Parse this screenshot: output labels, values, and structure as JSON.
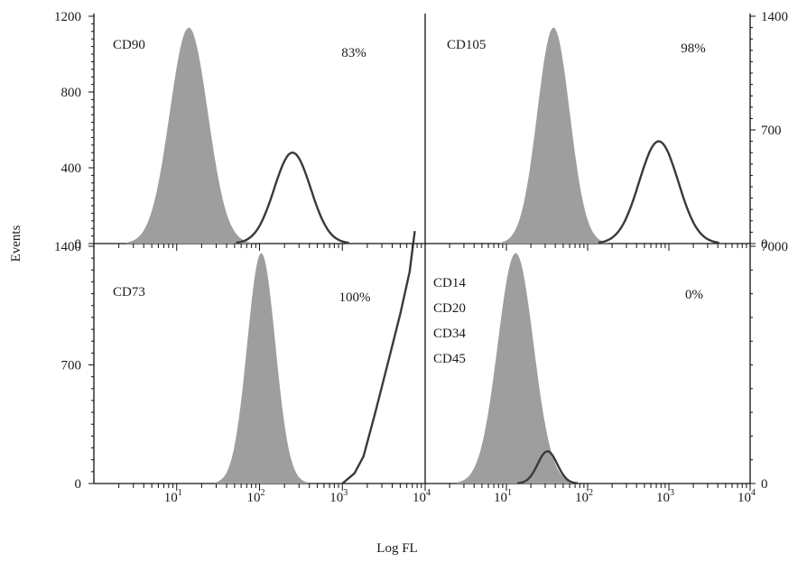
{
  "chart_data": {
    "type": "area",
    "xlabel": "Log FL",
    "ylabel": "Events",
    "x_scale": "log",
    "xlim": [
      1,
      10000
    ],
    "x_ticks": [
      {
        "base": "10",
        "exp": "1"
      },
      {
        "base": "10",
        "exp": "2"
      },
      {
        "base": "10",
        "exp": "3"
      },
      {
        "base": "10",
        "exp": "4"
      }
    ],
    "panels": [
      {
        "id": "cd90",
        "labels": [
          "CD90"
        ],
        "percent": "83%",
        "ylim": [
          0,
          1200
        ],
        "y_ticks": [
          0,
          400,
          800,
          1200
        ],
        "y_tick_labels": [
          "0",
          "400",
          "800",
          "1200"
        ],
        "y_axis_side": "left",
        "control": {
          "peak_x": 14,
          "peak_y": 1140,
          "sigma": 0.23
        },
        "sample": {
          "peak_x": 250,
          "peak_y": 480,
          "sigma": 0.22
        }
      },
      {
        "id": "cd105",
        "labels": [
          "CD105"
        ],
        "percent": "98%",
        "ylim": [
          0,
          1400
        ],
        "y_ticks": [
          0,
          700,
          1400
        ],
        "y_tick_labels": [
          "0",
          "700",
          "1400"
        ],
        "y_axis_side": "right",
        "control": {
          "peak_x": 38,
          "peak_y": 1330,
          "sigma": 0.2
        },
        "sample": {
          "peak_x": 750,
          "peak_y": 630,
          "sigma": 0.24
        }
      },
      {
        "id": "cd73",
        "labels": [
          "CD73"
        ],
        "percent": "100%",
        "ylim": [
          0,
          1400
        ],
        "y_ticks": [
          0,
          700,
          1400
        ],
        "y_tick_labels": [
          "0",
          "700",
          "1400"
        ],
        "y_axis_side": "left",
        "control": {
          "peak_x": 105,
          "peak_y": 1360,
          "sigma": 0.17
        },
        "sample_points": [
          [
            1000,
            0
          ],
          [
            1400,
            60
          ],
          [
            1800,
            160
          ],
          [
            2500,
            420
          ],
          [
            3500,
            700
          ],
          [
            5000,
            1000
          ],
          [
            6500,
            1250
          ],
          [
            7500,
            1490
          ]
        ]
      },
      {
        "id": "negative",
        "labels": [
          "CD14",
          "CD20",
          "CD34",
          "CD45"
        ],
        "percent": "0%",
        "ylim": [
          0,
          7000
        ],
        "y_ticks": [
          0,
          7000
        ],
        "y_tick_labels": [
          "0",
          "7000"
        ],
        "y_axis_side": "right",
        "control": {
          "peak_x": 13,
          "peak_y": 6800,
          "sigma": 0.22
        },
        "sample": {
          "peak_x": 32,
          "peak_y": 950,
          "sigma": 0.12
        }
      }
    ],
    "colors": {
      "control_fill": "#9e9e9e",
      "sample_line": "#3a3a3a",
      "axis": "#111111"
    }
  }
}
